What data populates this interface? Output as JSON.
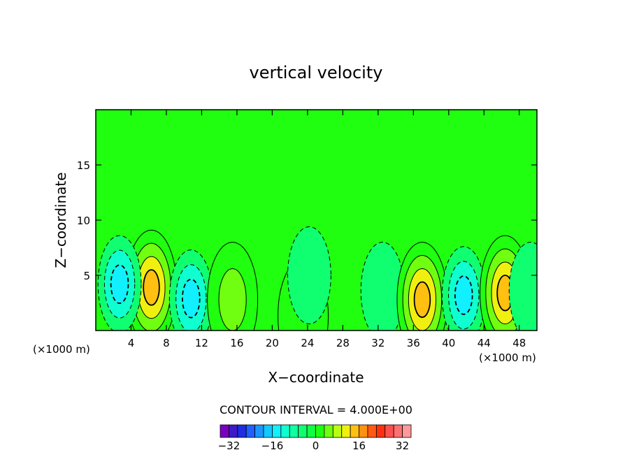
{
  "chart_data": {
    "type": "heatmap",
    "title": "vertical velocity",
    "xlabel": "X−coordinate",
    "ylabel": "Z−coordinate",
    "x_unit_left": "(×1000 m)",
    "x_unit_right": "(×1000 m)",
    "xlim": [
      0,
      50
    ],
    "ylim": [
      0,
      20
    ],
    "xticks": [
      4,
      8,
      12,
      16,
      20,
      24,
      28,
      32,
      36,
      40,
      44,
      48
    ],
    "xtick_labels": [
      "4",
      "8",
      "12",
      "16",
      "20",
      "24",
      "28",
      "32",
      "36",
      "40",
      "44",
      "48"
    ],
    "yticks": [
      5,
      10,
      15
    ],
    "ytick_labels": [
      "5",
      "10",
      "15"
    ],
    "background_value": 0,
    "contour_interval_text": "CONTOUR INTERVAL =  4.000E+00",
    "contour_interval": 4,
    "features": [
      {
        "kind": "updraft",
        "x": 6.3,
        "z": 3.9,
        "max": 16
      },
      {
        "kind": "downdraft",
        "x": 10.8,
        "z": 2.9,
        "min": -12
      },
      {
        "kind": "updraft",
        "x": 15.5,
        "z": 2.8,
        "max": 8
      },
      {
        "kind": "downdraft",
        "x": 2.7,
        "z": 4.2,
        "min": -12
      },
      {
        "kind": "updraft",
        "x": 23.5,
        "z": 1.3,
        "max": 4
      },
      {
        "kind": "downdraft",
        "x": 24.2,
        "z": 5.0,
        "min": -4
      },
      {
        "kind": "downdraft",
        "x": 32.5,
        "z": 3.6,
        "min": -4
      },
      {
        "kind": "updraft",
        "x": 37.0,
        "z": 2.8,
        "max": 16
      },
      {
        "kind": "downdraft",
        "x": 41.7,
        "z": 3.2,
        "min": -12
      },
      {
        "kind": "updraft",
        "x": 46.4,
        "z": 3.4,
        "max": 16
      },
      {
        "kind": "downdraft",
        "x": 49.3,
        "z": 3.6,
        "min": -4
      }
    ],
    "colorbar": {
      "labels": [
        "−32",
        "−16",
        "0",
        "16",
        "32"
      ],
      "label_values": [
        -32,
        -16,
        0,
        16,
        32
      ],
      "colors": [
        "#7a00c0",
        "#3c1cc4",
        "#1e2ee0",
        "#2060ff",
        "#1c96ff",
        "#14c8ff",
        "#10f0ff",
        "#10ffd0",
        "#10ffa0",
        "#10ff70",
        "#10ff40",
        "#20ff10",
        "#70ff10",
        "#b8ff10",
        "#f0f010",
        "#ffc010",
        "#ff9010",
        "#ff5a10",
        "#ff3010",
        "#ff5050",
        "#ff7070",
        "#ff9a9a"
      ]
    }
  }
}
